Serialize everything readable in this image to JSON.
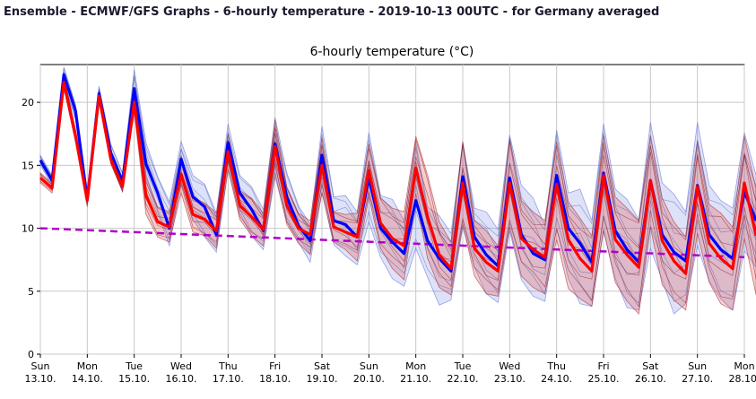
{
  "page": {
    "header": "Ensemble - ECMWF/GFS Graphs - 6-hourly temperature - 2019-10-13 00UTC - for Germany averaged"
  },
  "chart_data": {
    "type": "line",
    "title": "6-hourly temperature (°C)",
    "xlabel": "",
    "ylabel": "",
    "ylim": [
      0,
      23
    ],
    "xlim": [
      0,
      15
    ],
    "grid": true,
    "legend": "none",
    "y_ticks": [
      0,
      5,
      10,
      15,
      20
    ],
    "x_ticks": [
      {
        "pos": 0,
        "day": "Sun",
        "date": "13.10."
      },
      {
        "pos": 1,
        "day": "Mon",
        "date": "14.10."
      },
      {
        "pos": 2,
        "day": "Tue",
        "date": "15.10."
      },
      {
        "pos": 3,
        "day": "Wed",
        "date": "16.10."
      },
      {
        "pos": 4,
        "day": "Thu",
        "date": "17.10."
      },
      {
        "pos": 5,
        "day": "Fri",
        "date": "18.10."
      },
      {
        "pos": 6,
        "day": "Sat",
        "date": "19.10."
      },
      {
        "pos": 7,
        "day": "Sun",
        "date": "20.10."
      },
      {
        "pos": 8,
        "day": "Mon",
        "date": "21.10."
      },
      {
        "pos": 9,
        "day": "Tue",
        "date": "22.10."
      },
      {
        "pos": 10,
        "day": "Wed",
        "date": "23.10."
      },
      {
        "pos": 11,
        "day": "Thu",
        "date": "24.10."
      },
      {
        "pos": 12,
        "day": "Fri",
        "date": "25.10."
      },
      {
        "pos": 13,
        "day": "Sat",
        "date": "26.10."
      },
      {
        "pos": 14,
        "day": "Sun",
        "date": "27.10."
      },
      {
        "pos": 15,
        "day": "Mon",
        "date": "28.10."
      }
    ],
    "x_step_days": 0.25,
    "series": [
      {
        "color": "#0000ff",
        "values": [
          15.4,
          13.8,
          22.2,
          19.3,
          12.3,
          20.7,
          16.0,
          13.7,
          21.1,
          15.1,
          12.8,
          10.0,
          15.5,
          12.5,
          11.7,
          9.5,
          16.8,
          12.8,
          11.5,
          9.8,
          16.7,
          12.5,
          10.2,
          9.0,
          15.8,
          10.6,
          10.3,
          9.3,
          14.0,
          10.0,
          8.9,
          8.0,
          12.2,
          9.0,
          7.6,
          6.6,
          14.1,
          9.3,
          7.9,
          7.0,
          14.0,
          9.5,
          8.0,
          7.5,
          14.2,
          10.0,
          8.8,
          7.3,
          14.4,
          9.8,
          8.3,
          7.3,
          13.8,
          9.5,
          8.1,
          7.4,
          13.4,
          9.5,
          8.3,
          7.6,
          12.9,
          10.6
        ]
      },
      {
        "color": "#ff0000",
        "values": [
          14.0,
          13.2,
          21.6,
          17.3,
          12.2,
          20.5,
          15.5,
          13.3,
          20.0,
          12.6,
          10.5,
          10.1,
          14.3,
          11.1,
          10.7,
          9.8,
          16.1,
          11.8,
          10.9,
          9.9,
          16.5,
          11.8,
          10.0,
          9.5,
          15.0,
          10.1,
          9.7,
          9.3,
          14.6,
          10.4,
          9.2,
          8.6,
          14.8,
          10.9,
          7.9,
          6.8,
          13.6,
          8.4,
          7.3,
          6.6,
          13.6,
          9.2,
          8.3,
          7.7,
          13.5,
          9.1,
          7.6,
          6.6,
          14.2,
          9.1,
          7.9,
          6.9,
          13.8,
          9.0,
          7.4,
          6.4,
          13.3,
          8.8,
          7.6,
          6.8,
          13.6,
          9.4
        ]
      }
    ],
    "spread_bands": [
      {
        "color": "#4a5fd8",
        "low": [
          15.0,
          13.4,
          21.6,
          18.6,
          11.9,
          20.1,
          15.3,
          12.9,
          19.6,
          13.8,
          11.2,
          8.6,
          13.6,
          10.7,
          9.3,
          8.1,
          14.6,
          11.2,
          9.4,
          8.3,
          14.1,
          10.5,
          8.9,
          7.3,
          12.9,
          8.7,
          7.8,
          7.1,
          10.5,
          7.7,
          6.0,
          5.4,
          8.4,
          6.1,
          3.9,
          4.3,
          10.1,
          6.9,
          4.8,
          4.1,
          9.8,
          5.9,
          4.6,
          4.2,
          10.0,
          6.0,
          4.0,
          3.8,
          9.8,
          6.0,
          3.7,
          3.5,
          8.4,
          5.9,
          3.2,
          4.0,
          8.6,
          5.8,
          4.4,
          3.5,
          8.2,
          6.9
        ],
        "high": [
          15.8,
          14.2,
          22.8,
          19.8,
          12.9,
          21.3,
          16.7,
          14.4,
          22.6,
          16.8,
          14.1,
          12.1,
          16.9,
          14.2,
          13.5,
          11.2,
          18.3,
          14.2,
          13.3,
          11.5,
          18.8,
          14.4,
          11.8,
          10.3,
          18.1,
          12.5,
          12.6,
          11.3,
          17.6,
          12.6,
          12.3,
          10.6,
          16.8,
          11.7,
          11.0,
          9.6,
          16.8,
          11.6,
          11.3,
          9.9,
          17.4,
          13.4,
          12.4,
          10.2,
          17.8,
          12.8,
          13.1,
          10.6,
          18.3,
          13.1,
          12.3,
          10.7,
          18.4,
          13.6,
          12.7,
          11.3,
          18.4,
          13.4,
          12.2,
          11.6,
          17.6,
          14.2
        ]
      },
      {
        "color": "#e05050",
        "low": [
          13.6,
          12.8,
          21.1,
          16.8,
          11.7,
          20.0,
          15.1,
          12.9,
          19.2,
          11.1,
          9.3,
          8.9,
          12.8,
          9.7,
          9.4,
          8.4,
          14.7,
          10.7,
          9.4,
          8.6,
          14.4,
          10.3,
          8.8,
          7.9,
          12.8,
          8.9,
          8.3,
          7.4,
          12.5,
          8.4,
          6.8,
          5.9,
          12.3,
          7.6,
          5.3,
          4.7,
          10.3,
          6.2,
          4.8,
          4.6,
          10.1,
          6.2,
          5.3,
          4.8,
          9.1,
          5.2,
          4.4,
          3.8,
          9.9,
          5.7,
          4.2,
          3.2,
          10.1,
          5.5,
          4.3,
          3.5,
          9.6,
          5.7,
          4.0,
          3.5,
          9.2,
          4.7
        ]
      },
      {
        "color": "#e05050",
        "high": [
          14.4,
          13.6,
          22.1,
          17.8,
          12.7,
          21.0,
          15.9,
          13.7,
          20.8,
          14.1,
          11.7,
          11.3,
          15.8,
          12.5,
          12.0,
          11.2,
          17.5,
          13.0,
          12.4,
          11.2,
          18.6,
          13.3,
          11.2,
          10.6,
          17.2,
          11.3,
          11.1,
          11.2,
          16.7,
          12.4,
          11.6,
          11.3,
          17.3,
          14.2,
          10.5,
          8.9,
          16.9,
          10.6,
          9.8,
          8.6,
          17.1,
          12.2,
          11.3,
          10.6,
          16.9,
          12.1,
          10.8,
          9.4,
          17.4,
          12.5,
          11.6,
          10.6,
          17.4,
          12.4,
          10.5,
          9.3,
          17.0,
          11.9,
          11.2,
          10.1,
          17.3,
          13.1
        ]
      }
    ],
    "climatology": {
      "color": "#b000c8",
      "x": [
        0,
        15
      ],
      "values": [
        10.0,
        7.7
      ]
    }
  }
}
